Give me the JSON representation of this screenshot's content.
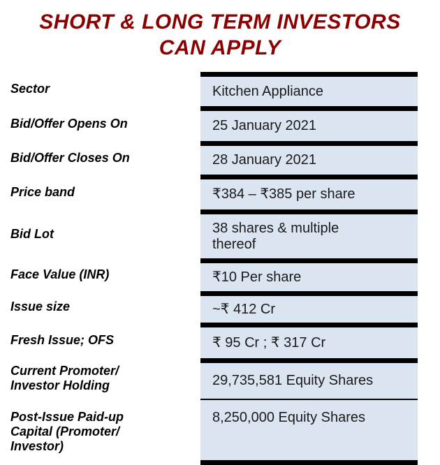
{
  "title": {
    "line1": "SHORT & LONG TERM INVESTORS",
    "line2": "CAN APPLY"
  },
  "colors": {
    "title_text": "#8B0000",
    "value_cell_bg": "#dbe5f1",
    "separator_bar": "#000000",
    "label_text": "#000000",
    "value_text": "#1a1a1a"
  },
  "table": {
    "rows": [
      {
        "label": "Sector",
        "value": "Kitchen Appliance"
      },
      {
        "label": "Bid/Offer Opens On",
        "value": "25 January 2021"
      },
      {
        "label": "Bid/Offer Closes On",
        "value": "28 January 2021"
      },
      {
        "label": "Price band",
        "value": "₹384 – ₹385 per share"
      },
      {
        "label": "Bid Lot",
        "value": "38 shares & multiple\nthereof"
      },
      {
        "label": "Face Value (INR)",
        "value": "₹10 Per share"
      },
      {
        "label": "Issue size",
        "value": "~₹ 412 Cr"
      },
      {
        "label": "Fresh Issue; OFS",
        "value": "₹ 95 Cr ; ₹ 317 Cr"
      },
      {
        "label": "Current Promoter/\nInvestor Holding",
        "value": "29,735,581 Equity Shares"
      },
      {
        "label": "Post-Issue Paid-up\nCapital (Promoter/\nInvestor)",
        "value": "8,250,000 Equity Shares"
      }
    ]
  }
}
